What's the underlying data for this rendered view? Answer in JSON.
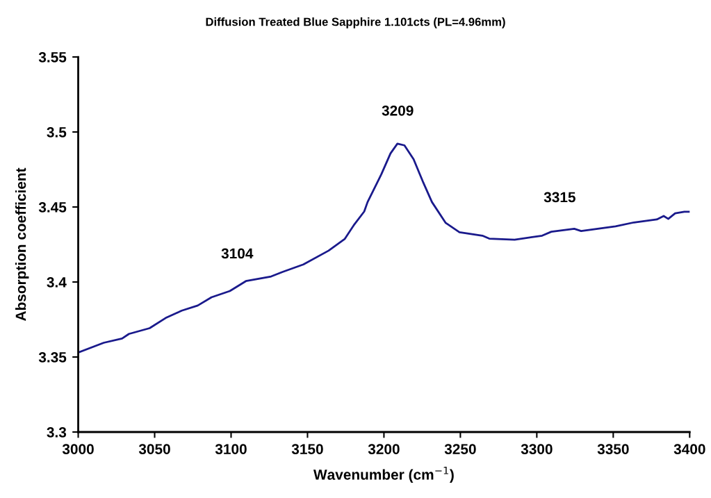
{
  "chart_data": {
    "type": "line",
    "title": "Diffusion Treated Blue Sapphire 1.101cts (PL=4.96mm)",
    "xlabel": "Wavenumber (cm$^{−1}$)",
    "ylabel": "Absorption coefficient",
    "series": [
      {
        "color": "#1a1a8c",
        "x": [
          3000,
          3016.7,
          3028.7,
          3033.2,
          3046.7,
          3057.2,
          3067.7,
          3078.2,
          3087.2,
          3099.2,
          3109.7,
          3126.2,
          3133.7,
          3147.3,
          3163.8,
          3174.3,
          3180.3,
          3187.1,
          3189.3,
          3198.3,
          3204.3,
          3208.8,
          3213.4,
          3219.4,
          3225.4,
          3231.4,
          3240.4,
          3249.4,
          3264.4,
          3268.9,
          3285.5,
          3303.5,
          3309.5,
          3324.5,
          3329,
          3351.5,
          3363.5,
          3378.5,
          3383,
          3386,
          3390.5,
          3396.5,
          3400
        ],
        "values": [
          3.353,
          3.3595,
          3.3623,
          3.3654,
          3.3692,
          3.376,
          3.3809,
          3.3843,
          3.3898,
          3.394,
          3.4006,
          3.4037,
          3.4067,
          3.4117,
          3.4209,
          3.4286,
          3.4379,
          3.447,
          3.4533,
          3.4718,
          3.4857,
          3.4922,
          3.4911,
          3.4818,
          3.4671,
          3.4533,
          3.4394,
          3.4332,
          3.4309,
          3.4289,
          3.4282,
          3.4309,
          3.4335,
          3.4355,
          3.434,
          3.4371,
          3.4397,
          3.4417,
          3.444,
          3.4421,
          3.4458,
          3.4468,
          3.4468
        ]
      }
    ],
    "annotations": [
      {
        "text": "3104",
        "x": 3104,
        "y": 3.397
      },
      {
        "text": "3209",
        "x": 3209,
        "y": 3.4922
      },
      {
        "text": "3315",
        "x": 3315,
        "y": 3.4345
      }
    ],
    "xlim": [
      3000,
      3400
    ],
    "xticks": [
      3000,
      3050,
      3100,
      3150,
      3200,
      3250,
      3300,
      3350,
      3400
    ],
    "ylim": [
      3.3,
      3.55
    ],
    "yticks": [
      3.3,
      3.35,
      3.4,
      3.45,
      3.5,
      3.55
    ],
    "grid": false
  }
}
